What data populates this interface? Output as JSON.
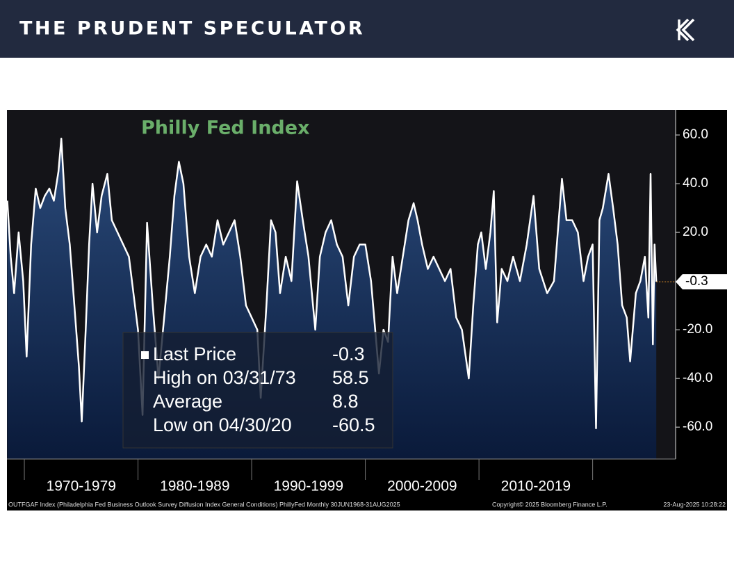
{
  "header": {
    "title": "THE PRUDENT SPECULATOR"
  },
  "chart_data": {
    "type": "area",
    "title": "Philly Fed Index",
    "series": [
      {
        "name": "Philly Fed Index",
        "color": "#ffffff",
        "x": [
          1968.5,
          1968.8,
          1969.1,
          1969.5,
          1969.9,
          1970.2,
          1970.6,
          1971.0,
          1971.4,
          1971.8,
          1972.2,
          1972.6,
          1973.0,
          1973.25,
          1973.6,
          1974.0,
          1974.4,
          1974.8,
          1975.05,
          1975.4,
          1975.7,
          1976.0,
          1976.4,
          1976.8,
          1977.3,
          1977.7,
          1978.2,
          1978.7,
          1979.2,
          1979.6,
          1980.0,
          1980.4,
          1980.8,
          1981.3,
          1981.8,
          1982.3,
          1982.8,
          1983.2,
          1983.6,
          1984.0,
          1984.5,
          1985.0,
          1985.5,
          1986.0,
          1986.5,
          1987.0,
          1987.5,
          1988.0,
          1988.5,
          1989.0,
          1989.5,
          1990.0,
          1990.5,
          1990.8,
          1991.3,
          1991.7,
          1992.1,
          1992.5,
          1993.0,
          1993.5,
          1994.0,
          1994.5,
          1995.0,
          1995.6,
          1996.0,
          1996.5,
          1997.0,
          1997.5,
          1998.0,
          1998.5,
          1999.0,
          1999.5,
          2000.0,
          2000.5,
          2001.2,
          2001.6,
          2002.0,
          2002.4,
          2002.8,
          2003.3,
          2003.8,
          2004.25,
          2004.6,
          2005.0,
          2005.5,
          2006.0,
          2006.5,
          2007.0,
          2007.5,
          2008.0,
          2008.5,
          2009.1,
          2009.5,
          2009.9,
          2010.2,
          2010.6,
          2011.0,
          2011.3,
          2011.6,
          2012.0,
          2012.5,
          2013.0,
          2013.6,
          2014.2,
          2014.8,
          2015.3,
          2016.0,
          2016.6,
          2017.3,
          2017.7,
          2018.2,
          2018.7,
          2019.2,
          2019.6,
          2020.0,
          2020.3,
          2020.6,
          2020.9,
          2021.4,
          2021.8,
          2022.2,
          2022.6,
          2023.0,
          2023.3,
          2023.8,
          2024.2,
          2024.6,
          2024.9,
          2025.1,
          2025.3,
          2025.45,
          2025.6
        ],
        "values": [
          33,
          10,
          -5,
          20,
          0,
          -31,
          15,
          38,
          30,
          35,
          38,
          33,
          45,
          58.5,
          30,
          15,
          -10,
          -35,
          -57.7,
          -20,
          15,
          40,
          20,
          35,
          44,
          25,
          20,
          15,
          10,
          -5,
          -20,
          -55,
          24,
          -10,
          -40,
          -15,
          10,
          35,
          49,
          40,
          10,
          -5,
          10,
          15,
          10,
          25,
          15,
          20,
          25,
          10,
          -10,
          -15,
          -20,
          -48,
          -10,
          25,
          20,
          -5,
          10,
          0,
          41,
          25,
          10,
          -20,
          10,
          20,
          25,
          15,
          10,
          -10,
          10,
          15,
          15,
          0,
          -38,
          -20,
          -25,
          10,
          -5,
          10,
          25,
          32,
          25,
          15,
          5,
          10,
          5,
          0,
          5,
          -15,
          -20,
          -40,
          -10,
          15,
          20,
          5,
          20,
          37,
          -17,
          5,
          0,
          10,
          0,
          15,
          35,
          5,
          -5,
          0,
          42,
          25,
          25,
          20,
          0,
          10,
          15,
          -60.5,
          25,
          30,
          44,
          30,
          15,
          -10,
          -15,
          -33,
          -5,
          0,
          10,
          -15,
          44,
          -26,
          15,
          -0.3
        ]
      }
    ],
    "xlim": [
      1968.47,
      2027.3
    ],
    "xticks": [
      {
        "value": 1970,
        "label": "1970-1979"
      },
      {
        "value": 1980,
        "label": "1980-1989"
      },
      {
        "value": 1990,
        "label": "1990-1999"
      },
      {
        "value": 2000,
        "label": "2000-2009"
      },
      {
        "value": 2010,
        "label": "2010-2019"
      },
      {
        "value": 2020,
        "label": ""
      }
    ],
    "ylim": [
      -73.1,
      70.3
    ],
    "yticks": [
      {
        "value": -60,
        "label": "-60.0"
      },
      {
        "value": -40,
        "label": "-40.0"
      },
      {
        "value": -20,
        "label": "-20.0"
      },
      {
        "value": 20,
        "label": "20.0"
      },
      {
        "value": 40,
        "label": "40.0"
      },
      {
        "value": 60,
        "label": "60.0"
      }
    ],
    "stats": [
      {
        "label": "Last Price",
        "value": -0.3
      },
      {
        "label": "High on 03/31/73",
        "value": 58.5
      },
      {
        "label": "Average",
        "value": 8.8
      },
      {
        "label": "Low on 04/30/20",
        "value": -60.5
      }
    ],
    "footer": {
      "source": "OUTFGAF Index (Philadelphia Fed Business Outlook Survey Diffusion Index General Conditions) PhillyFed  Monthly 30JUN1968-31AUG2025",
      "copyright": "Copyright© 2025 Bloomberg Finance L.P.",
      "timestamp": "23-Aug-2025 10:28:22"
    }
  }
}
